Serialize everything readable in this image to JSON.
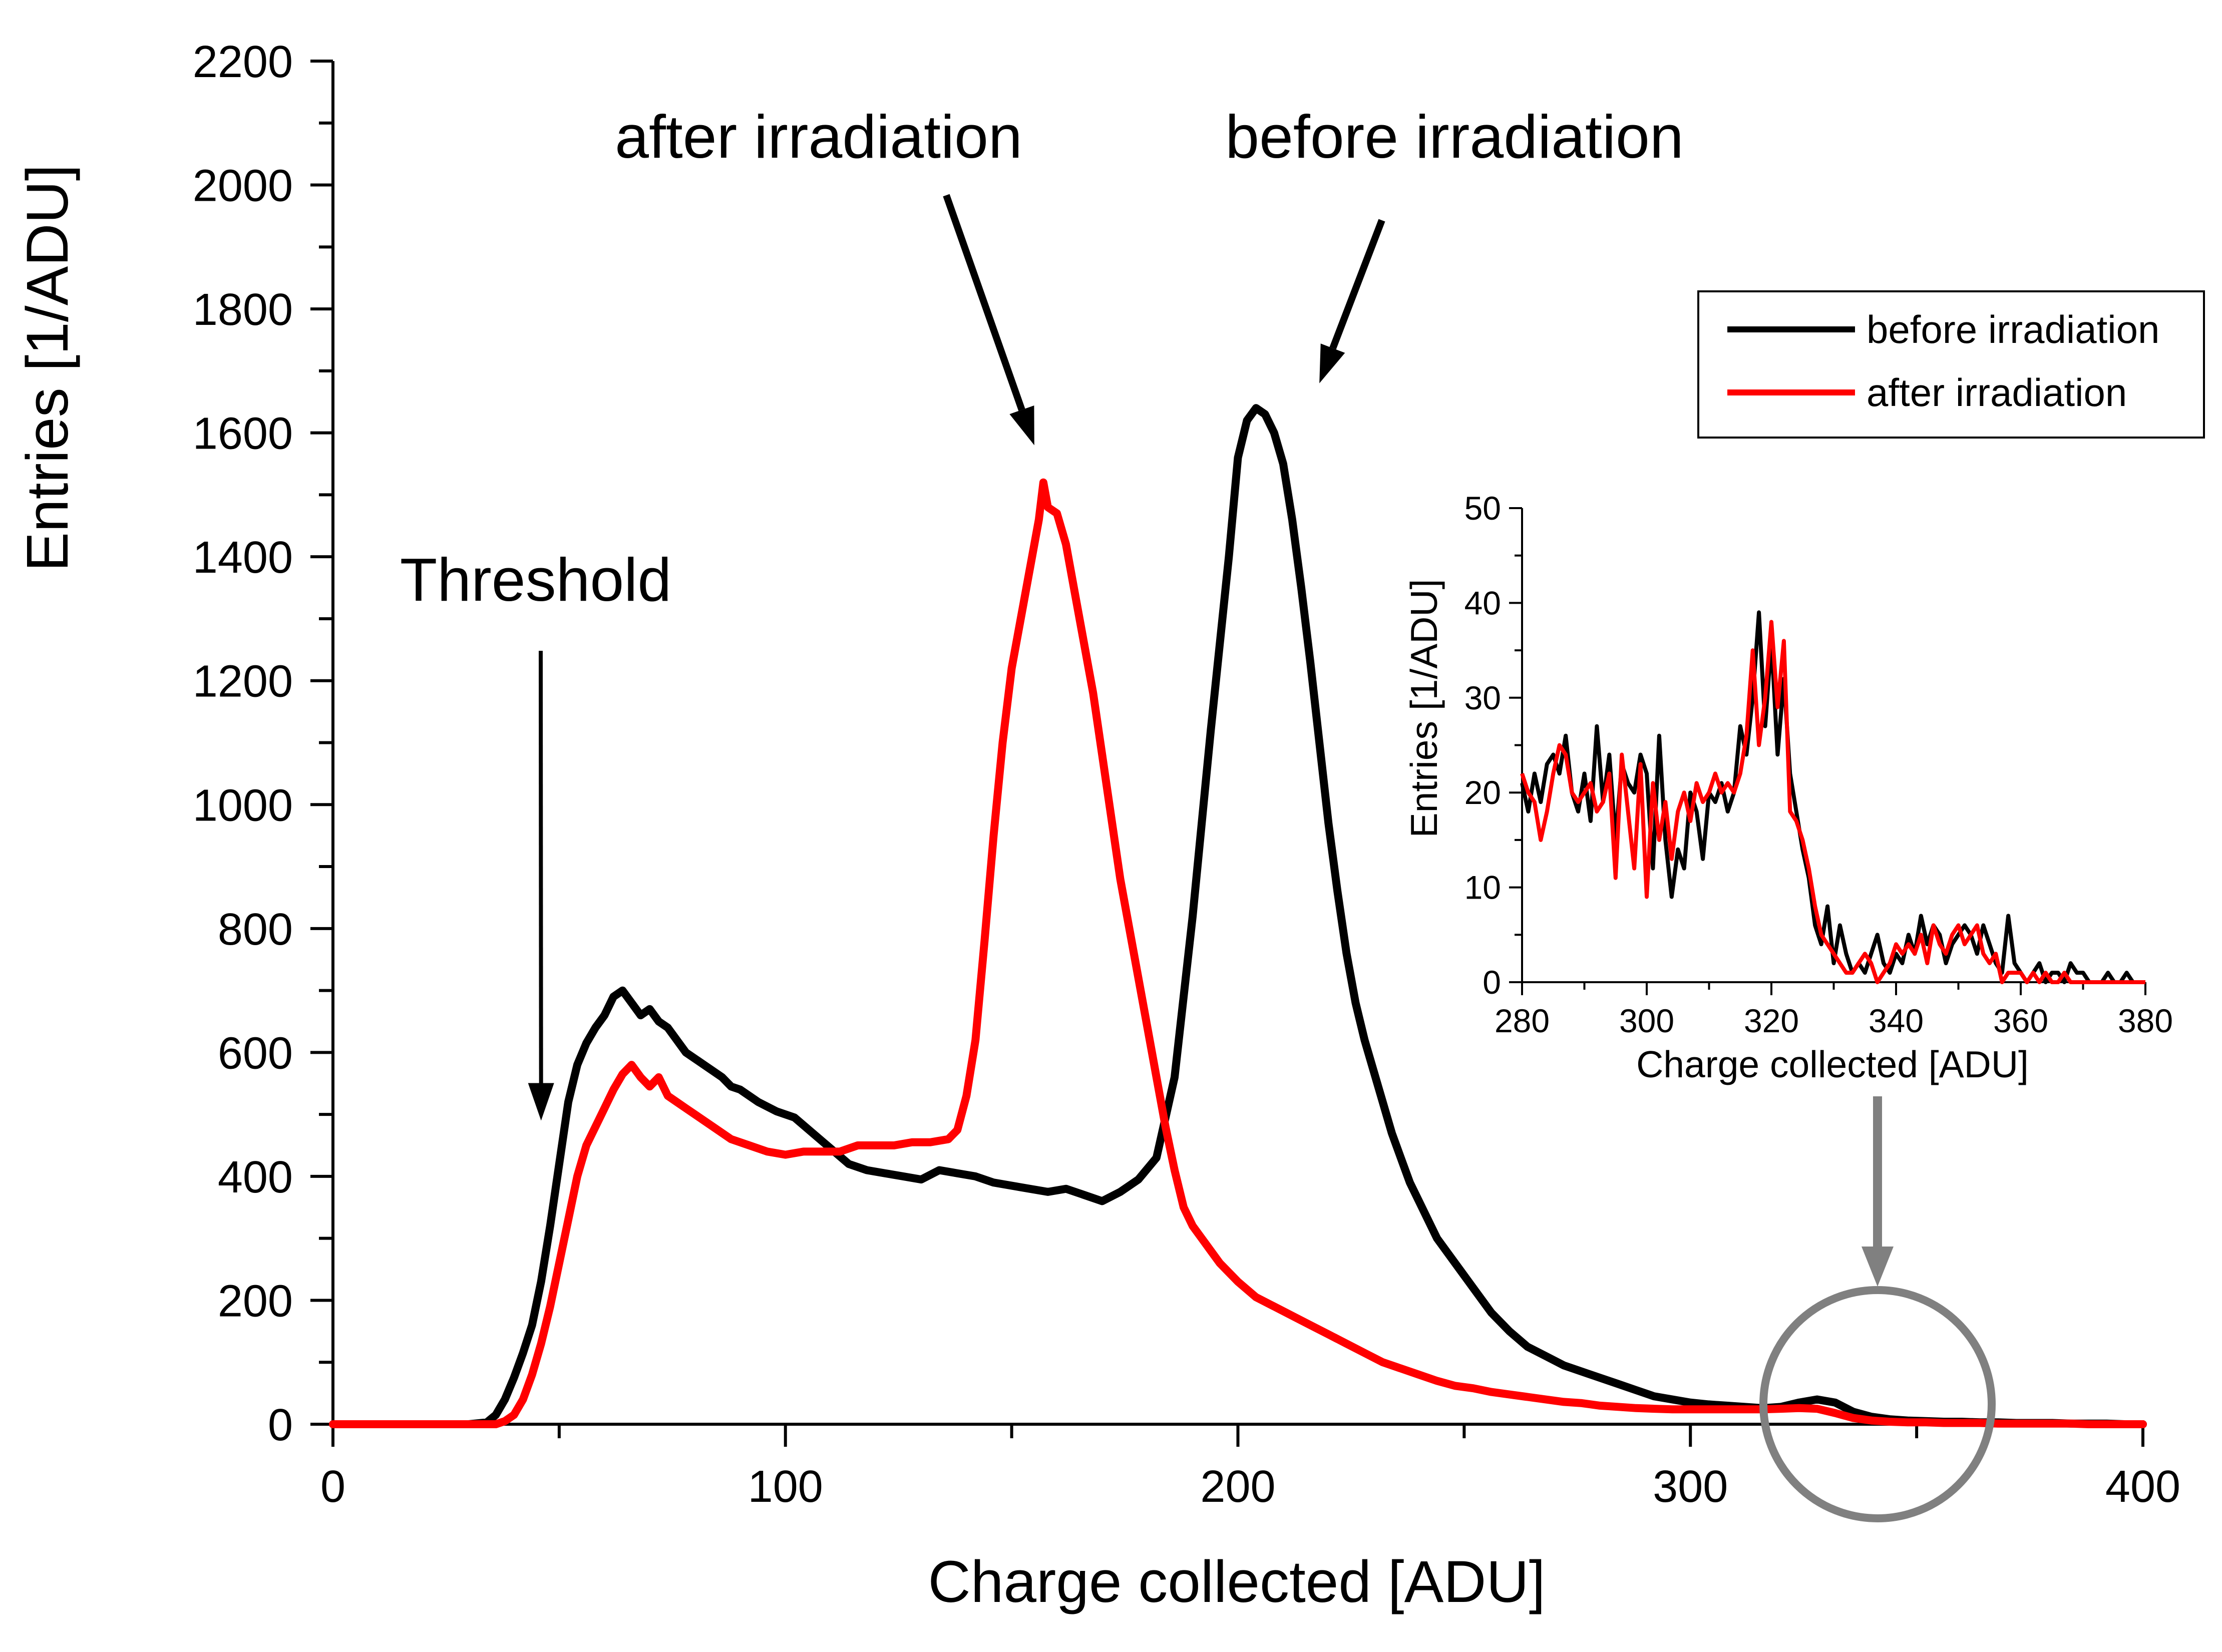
{
  "chart_data": [
    {
      "type": "line",
      "title": "",
      "xlabel": "Charge collected [ADU]",
      "ylabel": "Entries [1/ADU]",
      "xlim": [
        0,
        400
      ],
      "ylim": [
        0,
        2200
      ],
      "x_ticks": [
        0,
        100,
        200,
        300,
        400
      ],
      "y_ticks": [
        0,
        200,
        400,
        600,
        800,
        1000,
        1200,
        1400,
        1600,
        1800,
        2000,
        2200
      ],
      "grid": false,
      "legend": {
        "position": "top-right",
        "entries": [
          {
            "label": "before irradiation",
            "color": "#000000"
          },
          {
            "label": "after irradiation",
            "color": "#ff0000"
          }
        ]
      },
      "annotations": [
        {
          "text": "Threshold",
          "points_to_x": 46,
          "points_to_y": 490
        },
        {
          "text": "after irradiation",
          "points_to_x": 155,
          "points_to_y": 1580
        },
        {
          "text": "before irradiation",
          "points_to_x": 218,
          "points_to_y": 1680
        }
      ],
      "series": [
        {
          "name": "before irradiation",
          "color": "#000000",
          "x": [
            0,
            10,
            20,
            30,
            34,
            36,
            38,
            40,
            42,
            44,
            46,
            48,
            50,
            52,
            54,
            56,
            58,
            60,
            62,
            64,
            66,
            68,
            70,
            72,
            74,
            76,
            78,
            80,
            82,
            84,
            86,
            88,
            90,
            94,
            98,
            102,
            106,
            110,
            114,
            118,
            122,
            126,
            130,
            134,
            138,
            142,
            146,
            150,
            154,
            158,
            162,
            166,
            170,
            174,
            178,
            182,
            186,
            190,
            194,
            198,
            200,
            202,
            204,
            206,
            208,
            210,
            212,
            214,
            216,
            218,
            220,
            222,
            224,
            226,
            228,
            230,
            232,
            234,
            236,
            238,
            240,
            244,
            248,
            252,
            256,
            260,
            264,
            268,
            272,
            276,
            280,
            284,
            288,
            292,
            296,
            300,
            304,
            308,
            312,
            316,
            320,
            324,
            328,
            332,
            336,
            340,
            344,
            348,
            352,
            356,
            360,
            364,
            368,
            372,
            376,
            380,
            384,
            388,
            392,
            396,
            400
          ],
          "y": [
            0,
            0,
            0,
            0,
            3,
            15,
            40,
            75,
            115,
            160,
            230,
            320,
            420,
            520,
            580,
            615,
            640,
            660,
            690,
            700,
            680,
            660,
            670,
            650,
            640,
            620,
            600,
            590,
            580,
            570,
            560,
            545,
            540,
            520,
            505,
            495,
            470,
            445,
            420,
            410,
            405,
            400,
            395,
            410,
            405,
            400,
            390,
            385,
            380,
            375,
            380,
            370,
            360,
            375,
            395,
            430,
            560,
            820,
            1120,
            1400,
            1560,
            1620,
            1640,
            1630,
            1600,
            1550,
            1460,
            1350,
            1230,
            1100,
            970,
            860,
            760,
            680,
            620,
            570,
            520,
            470,
            430,
            390,
            360,
            300,
            260,
            220,
            180,
            150,
            125,
            110,
            95,
            85,
            75,
            65,
            55,
            45,
            40,
            35,
            32,
            30,
            28,
            26,
            28,
            35,
            40,
            35,
            20,
            12,
            8,
            6,
            5,
            4,
            4,
            3,
            3,
            2,
            2,
            2,
            1,
            1,
            1,
            0,
            0
          ]
        },
        {
          "name": "after irradiation",
          "color": "#ff0000",
          "x": [
            0,
            10,
            20,
            30,
            36,
            38,
            40,
            42,
            44,
            46,
            48,
            50,
            52,
            54,
            56,
            58,
            60,
            62,
            64,
            66,
            68,
            70,
            72,
            74,
            76,
            78,
            80,
            84,
            88,
            92,
            96,
            100,
            104,
            108,
            112,
            116,
            120,
            124,
            128,
            132,
            136,
            138,
            140,
            142,
            144,
            146,
            148,
            150,
            152,
            154,
            156,
            157,
            158,
            160,
            162,
            164,
            166,
            168,
            170,
            172,
            174,
            176,
            178,
            180,
            182,
            184,
            186,
            188,
            190,
            192,
            196,
            200,
            204,
            208,
            212,
            216,
            220,
            224,
            228,
            232,
            236,
            240,
            244,
            248,
            252,
            256,
            260,
            264,
            268,
            272,
            276,
            280,
            284,
            288,
            292,
            296,
            300,
            304,
            308,
            312,
            316,
            320,
            324,
            328,
            332,
            336,
            340,
            344,
            348,
            352,
            356,
            360,
            364,
            368,
            372,
            376,
            380,
            384,
            388,
            392,
            396,
            400
          ],
          "y": [
            0,
            0,
            0,
            0,
            0,
            5,
            15,
            40,
            80,
            130,
            190,
            260,
            330,
            400,
            450,
            480,
            510,
            540,
            565,
            580,
            560,
            545,
            560,
            530,
            520,
            510,
            500,
            480,
            460,
            450,
            440,
            435,
            440,
            440,
            440,
            450,
            450,
            450,
            455,
            455,
            460,
            475,
            530,
            620,
            780,
            950,
            1100,
            1220,
            1300,
            1380,
            1460,
            1520,
            1480,
            1470,
            1420,
            1340,
            1260,
            1180,
            1080,
            980,
            880,
            800,
            720,
            640,
            560,
            480,
            410,
            350,
            320,
            300,
            260,
            230,
            205,
            190,
            175,
            160,
            145,
            130,
            115,
            100,
            90,
            80,
            70,
            62,
            58,
            52,
            48,
            44,
            40,
            36,
            34,
            30,
            28,
            26,
            25,
            24,
            24,
            24,
            24,
            24,
            24,
            25,
            26,
            25,
            18,
            10,
            6,
            4,
            3,
            3,
            2,
            2,
            2,
            1,
            1,
            1,
            1,
            1,
            0,
            0,
            0,
            0
          ]
        }
      ]
    },
    {
      "type": "line",
      "title": "",
      "xlabel": "Charge collected [ADU]",
      "ylabel": "Entries [1/ADU]",
      "xlim": [
        280,
        380
      ],
      "ylim": [
        0,
        50
      ],
      "x_ticks": [
        280,
        300,
        320,
        340,
        360,
        380
      ],
      "y_ticks": [
        0,
        10,
        20,
        30,
        40,
        50
      ],
      "grid": false,
      "series": [
        {
          "name": "before irradiation",
          "color": "#000000",
          "x": [
            280,
            281,
            282,
            283,
            284,
            285,
            286,
            287,
            288,
            289,
            290,
            291,
            292,
            293,
            294,
            295,
            296,
            297,
            298,
            299,
            300,
            301,
            302,
            303,
            304,
            305,
            306,
            307,
            308,
            309,
            310,
            311,
            312,
            313,
            314,
            315,
            316,
            317,
            318,
            319,
            320,
            321,
            322,
            323,
            324,
            325,
            326,
            327,
            328,
            329,
            330,
            331,
            332,
            333,
            334,
            335,
            336,
            337,
            338,
            339,
            340,
            341,
            342,
            343,
            344,
            345,
            346,
            347,
            348,
            349,
            350,
            351,
            352,
            353,
            354,
            355,
            356,
            357,
            358,
            359,
            360,
            361,
            362,
            363,
            364,
            365,
            366,
            367,
            368,
            369,
            370,
            371,
            372,
            373,
            374,
            375,
            376,
            377,
            378,
            379,
            380
          ],
          "y": [
            21,
            18,
            22,
            19,
            23,
            24,
            22,
            26,
            20,
            18,
            22,
            17,
            27,
            19,
            24,
            15,
            23,
            21,
            20,
            24,
            22,
            12,
            26,
            15,
            9,
            14,
            12,
            20,
            18,
            13,
            20,
            19,
            21,
            18,
            20,
            27,
            24,
            30,
            39,
            27,
            36,
            24,
            32,
            22,
            18,
            14,
            11,
            6,
            4,
            8,
            2,
            6,
            3,
            1,
            2,
            1,
            3,
            5,
            2,
            1,
            3,
            2,
            5,
            3,
            7,
            4,
            6,
            5,
            2,
            4,
            5,
            6,
            5,
            3,
            6,
            4,
            2,
            1,
            7,
            2,
            1,
            0,
            1,
            2,
            0,
            1,
            1,
            0,
            2,
            1,
            1,
            0,
            0,
            0,
            1,
            0,
            0,
            1,
            0,
            0,
            0
          ]
        },
        {
          "name": "after irradiation",
          "color": "#ff0000",
          "x": [
            280,
            281,
            282,
            283,
            284,
            285,
            286,
            287,
            288,
            289,
            290,
            291,
            292,
            293,
            294,
            295,
            296,
            297,
            298,
            299,
            300,
            301,
            302,
            303,
            304,
            305,
            306,
            307,
            308,
            309,
            310,
            311,
            312,
            313,
            314,
            315,
            316,
            317,
            318,
            319,
            320,
            321,
            322,
            323,
            324,
            325,
            326,
            327,
            328,
            329,
            330,
            331,
            332,
            333,
            334,
            335,
            336,
            337,
            338,
            339,
            340,
            341,
            342,
            343,
            344,
            345,
            346,
            347,
            348,
            349,
            350,
            351,
            352,
            353,
            354,
            355,
            356,
            357,
            358,
            359,
            360,
            361,
            362,
            363,
            364,
            365,
            366,
            367,
            368,
            369,
            370,
            371,
            372,
            373,
            374,
            375,
            376,
            377,
            378,
            379,
            380
          ],
          "y": [
            22,
            20,
            19,
            15,
            18,
            22,
            25,
            24,
            20,
            19,
            20,
            21,
            18,
            19,
            22,
            11,
            24,
            18,
            12,
            23,
            9,
            21,
            15,
            19,
            13,
            18,
            20,
            17,
            21,
            19,
            20,
            22,
            20,
            21,
            20,
            22,
            26,
            35,
            25,
            30,
            38,
            29,
            36,
            18,
            17,
            15,
            12,
            8,
            5,
            4,
            3,
            2,
            1,
            1,
            2,
            3,
            2,
            0,
            1,
            2,
            4,
            3,
            4,
            3,
            5,
            2,
            6,
            4,
            3,
            5,
            6,
            4,
            5,
            6,
            3,
            2,
            3,
            0,
            1,
            1,
            1,
            0,
            1,
            0,
            1,
            0,
            0,
            1,
            0,
            0,
            0,
            0,
            0,
            0,
            0,
            0,
            0,
            0,
            0,
            0,
            0
          ]
        }
      ]
    }
  ]
}
